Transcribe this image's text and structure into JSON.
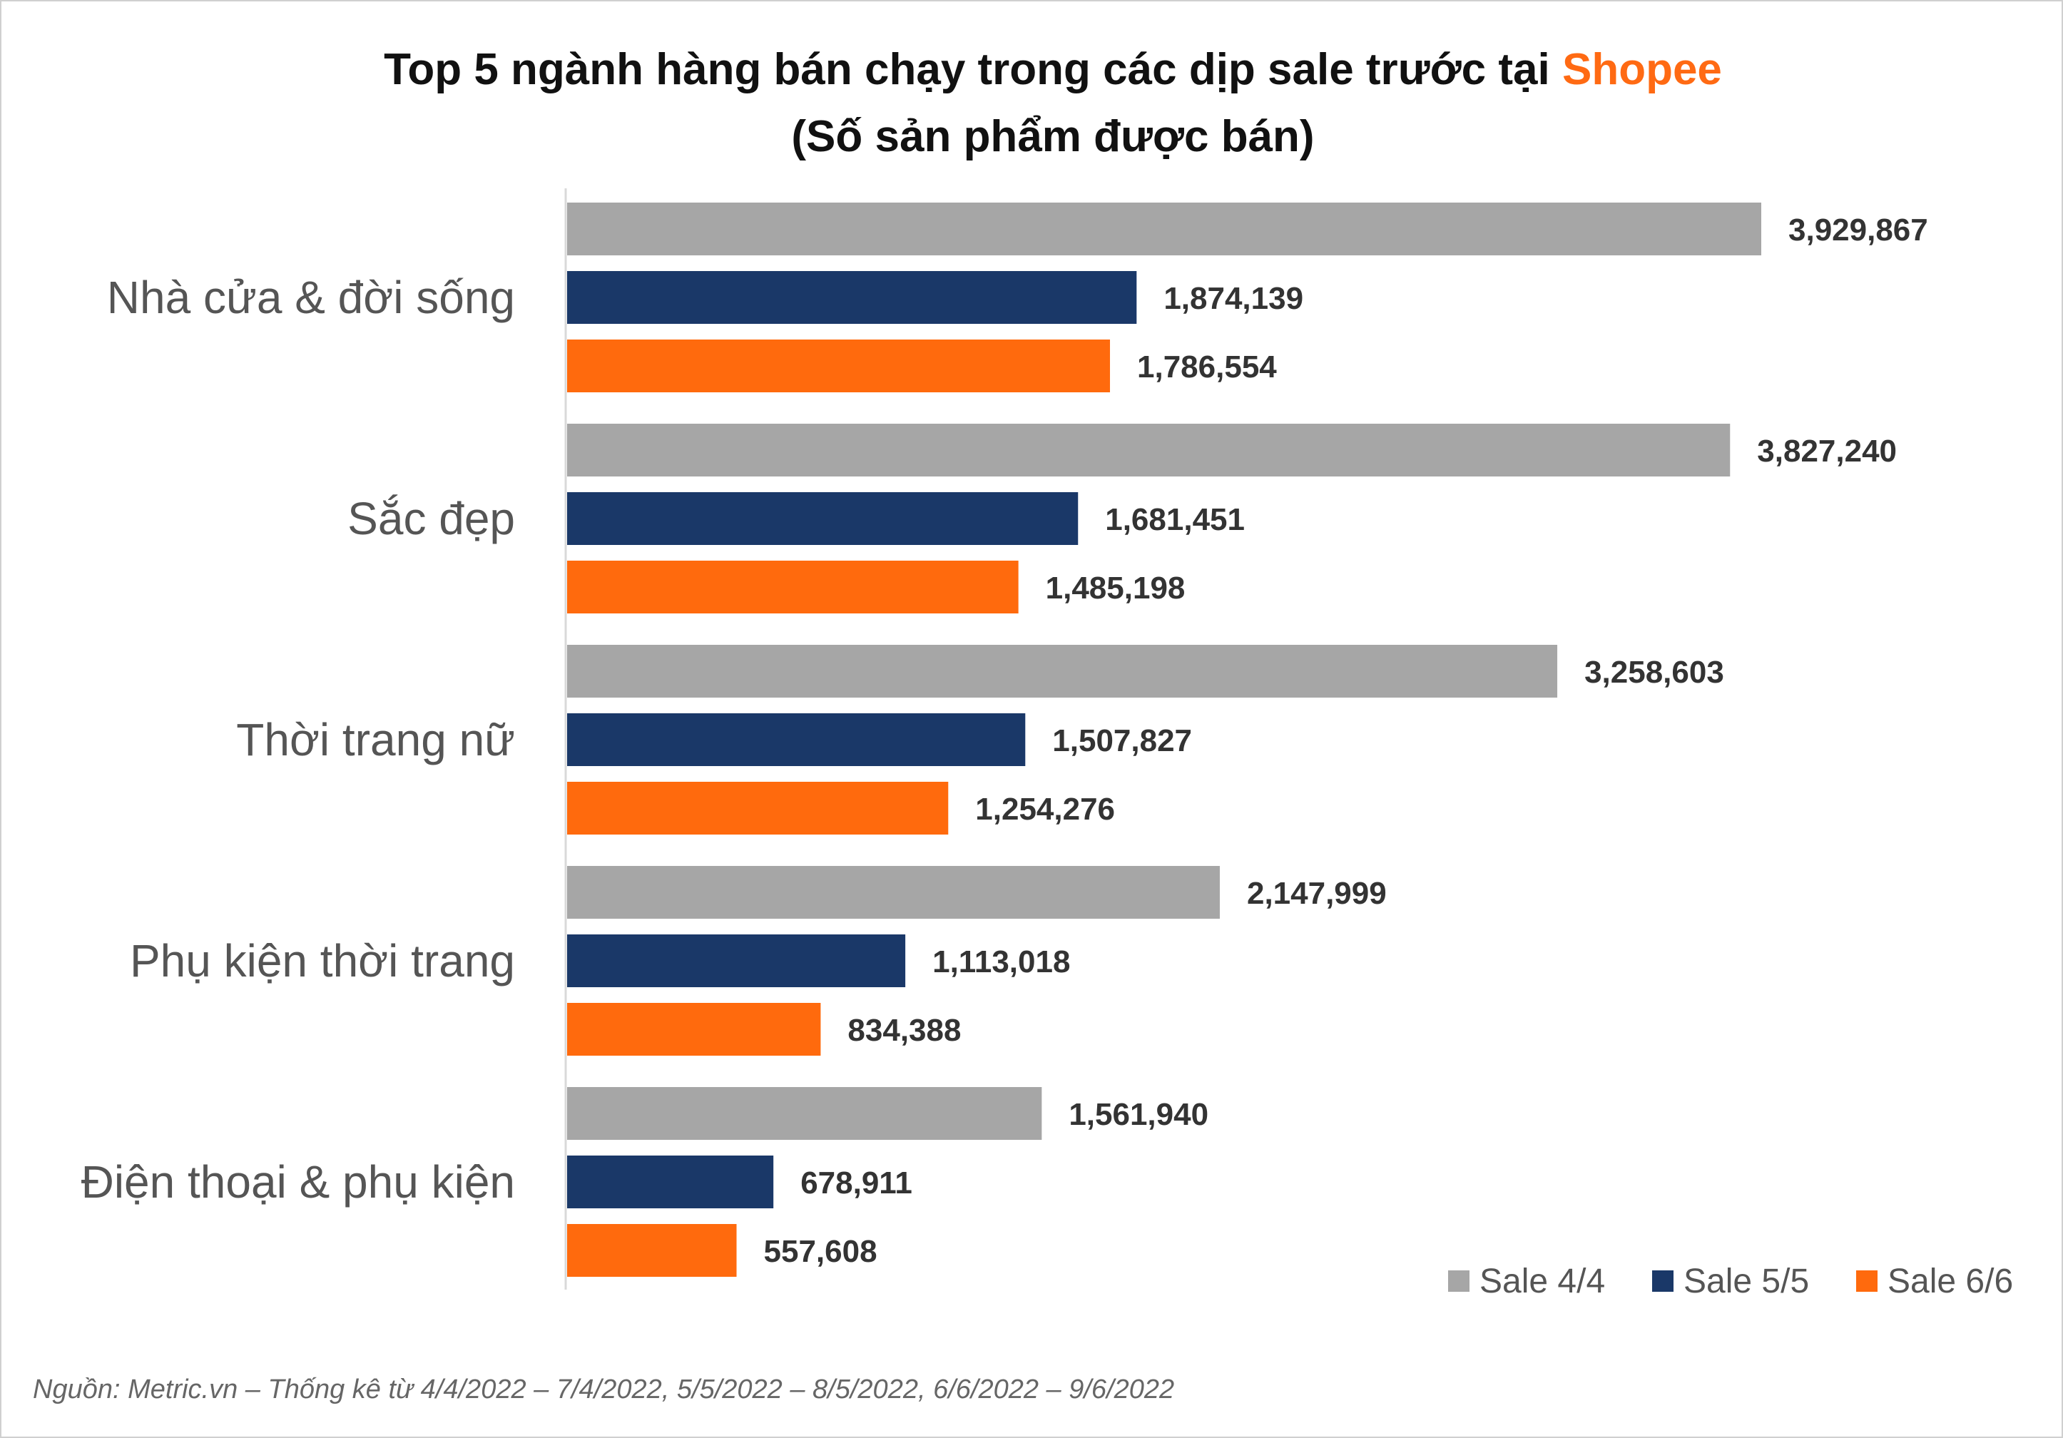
{
  "chart_data": {
    "type": "bar",
    "orientation": "horizontal",
    "title": "Top 5 ngành hàng bán chạy trong các dịp sale trước tại",
    "title_highlight": "Shopee",
    "subtitle": "(Số sản phẩm được bán)",
    "categories": [
      "Nhà cửa & đời sống",
      "Sắc đẹp",
      "Thời trang nữ",
      "Phụ kiện thời trang",
      "Điện thoại & phụ kiện"
    ],
    "series": [
      {
        "name": "Sale 4/4",
        "color": "#a6a6a6",
        "values": [
          3929867,
          3827240,
          3258603,
          2147999,
          1561940
        ],
        "labels": [
          "3,929,867",
          "3,827,240",
          "3,258,603",
          "2,147,999",
          "1,561,940"
        ]
      },
      {
        "name": "Sale 5/5",
        "color": "#1a3868",
        "values": [
          1874139,
          1681451,
          1507827,
          1113018,
          678911
        ],
        "labels": [
          "1,874,139",
          "1,681,451",
          "1,507,827",
          "1,113,018",
          "678,911"
        ]
      },
      {
        "name": "Sale 6/6",
        "color": "#ff6a0d",
        "values": [
          1786554,
          1485198,
          1254276,
          834388,
          557608
        ],
        "labels": [
          "1,786,554",
          "1,485,198",
          "1,254,276",
          "834,388",
          "557,608"
        ]
      }
    ],
    "legend_position": "bottom-right",
    "grid": false,
    "accent_color": "#ff6a13",
    "source": "Nguồn: Metric.vn – Thống kê từ 4/4/2022 – 7/4/2022, 5/5/2022 – 8/5/2022, 6/6/2022 – 9/6/2022"
  }
}
